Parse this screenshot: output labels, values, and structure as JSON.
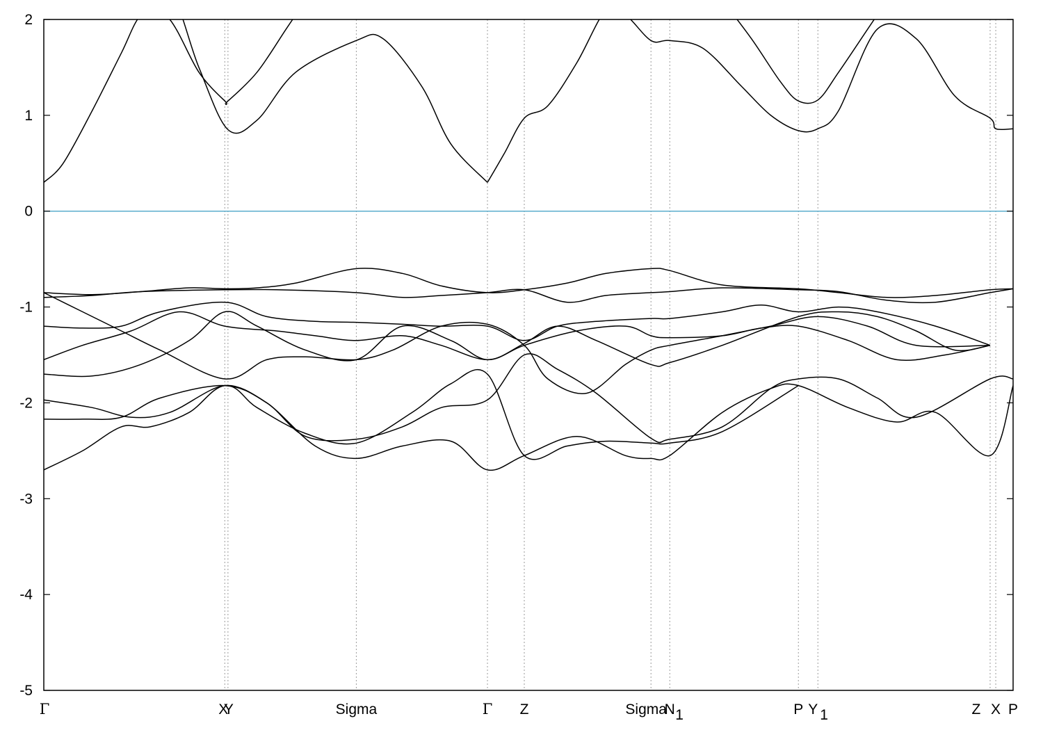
{
  "chart_data": {
    "type": "line",
    "title": "",
    "xlabel": "",
    "ylabel": "",
    "ylim": [
      -5,
      2
    ],
    "xlim": [
      0,
      1
    ],
    "y_ticks": [
      2,
      1,
      0,
      -1,
      -2,
      -3,
      -4,
      -5
    ],
    "y_tick_labels": [
      "2",
      "1",
      "0",
      "-1",
      "-2",
      "-3",
      "-4",
      "-5"
    ],
    "fermi_level": 0,
    "fermi_color": "#5aaccc",
    "line_color": "#000000",
    "grid": false,
    "kpoints": [
      {
        "name": "Γ",
        "x": 0.0
      },
      {
        "name": "X",
        "x": 0.1867
      },
      {
        "name": "Y",
        "x": 0.19
      },
      {
        "name": "Sigma",
        "x": 0.3224
      },
      {
        "name": "Γ",
        "x": 0.4577
      },
      {
        "name": "Z",
        "x": 0.4957
      },
      {
        "name": "Sigma",
        "x": 0.6264
      },
      {
        "name": "N",
        "x": 0.6458
      },
      {
        "name": "P",
        "x": 0.7785
      },
      {
        "name": "Y",
        "x": 0.7986
      },
      {
        "name": "Z",
        "x": 0.9763
      },
      {
        "name": "X",
        "x": 0.9821
      },
      {
        "name": "P",
        "x": 1.0
      }
    ],
    "kpoint_label_text": {
      "gamma1": "Γ",
      "xy": "X",
      "xy2": "Y",
      "sigma1": "Sigma",
      "gamma2": "Γ",
      "z1": "Z",
      "sigma2": "Sigma",
      "n1": "N",
      "n1_sub": "1",
      "p1": "P",
      "y1": "Y",
      "y1_sub": "1",
      "z2": "Z",
      "x2": "X",
      "p2": "P"
    },
    "series": [
      {
        "x": [
          0.0,
          0.02,
          0.05,
          0.08,
          0.1,
          0.13,
          0.16,
          0.19,
          0.22,
          0.26,
          0.3224,
          0.35,
          0.39,
          0.42,
          0.4577
        ],
        "y": [
          0.3,
          0.5,
          1.05,
          1.65,
          2.05,
          2.3,
          1.5,
          0.85,
          0.95,
          1.45,
          1.78,
          1.8,
          1.3,
          0.7,
          0.3
        ]
      },
      {
        "x": [
          0.4577,
          0.475,
          0.4957,
          0.52,
          0.55,
          0.58,
          0.6,
          0.6264,
          0.6458,
          0.68,
          0.72,
          0.75,
          0.7785,
          0.7986,
          0.82,
          0.86,
          0.9,
          0.94,
          0.9763,
          0.9821,
          1.0
        ],
        "y": [
          0.3,
          0.6,
          0.97,
          1.1,
          1.55,
          2.1,
          2.05,
          1.78,
          1.78,
          1.7,
          1.3,
          1.0,
          0.84,
          0.86,
          1.05,
          1.9,
          1.8,
          1.2,
          0.97,
          0.86,
          0.86
        ]
      },
      {
        "x": [
          0.1,
          0.13,
          0.16,
          0.1867,
          0.19,
          0.22,
          0.25,
          0.27
        ],
        "y": [
          2.2,
          2.0,
          1.45,
          1.15,
          1.15,
          1.45,
          1.9,
          2.2
        ]
      },
      {
        "x": [
          0.7,
          0.73,
          0.76,
          0.7785,
          0.7986,
          0.82,
          0.85,
          0.87
        ],
        "y": [
          2.2,
          1.8,
          1.35,
          1.15,
          1.16,
          1.45,
          1.9,
          2.2
        ]
      },
      {
        "x": [
          0.0,
          0.05,
          0.1,
          0.15,
          0.1867,
          0.22,
          0.26,
          0.3224,
          0.37,
          0.41,
          0.4577,
          0.4957,
          0.54,
          0.58,
          0.6264,
          0.6458,
          0.7,
          0.7785,
          0.82,
          0.87,
          0.92,
          0.9763,
          1.0
        ],
        "y": [
          -0.85,
          -0.87,
          -0.84,
          -0.8,
          -0.81,
          -0.8,
          -0.75,
          -0.6,
          -0.65,
          -0.78,
          -0.85,
          -0.82,
          -0.75,
          -0.65,
          -0.6,
          -0.62,
          -0.77,
          -0.81,
          -0.85,
          -0.9,
          -0.88,
          -0.82,
          -0.81
        ]
      },
      {
        "x": [
          0.0,
          0.05,
          0.1,
          0.1867,
          0.24,
          0.3224,
          0.37,
          0.41,
          0.4577,
          0.4957,
          0.54,
          0.58,
          0.6264,
          0.6458,
          0.7,
          0.7785,
          0.82,
          0.87,
          0.92,
          0.9763,
          1.0
        ],
        "y": [
          -0.9,
          -0.88,
          -0.84,
          -0.82,
          -0.82,
          -0.85,
          -0.9,
          -0.88,
          -0.85,
          -0.82,
          -0.95,
          -0.88,
          -0.85,
          -0.84,
          -0.8,
          -0.82,
          -0.84,
          -0.93,
          -0.95,
          -0.85,
          -0.81
        ]
      },
      {
        "x": [
          0.0,
          0.04,
          0.08,
          0.12,
          0.1867,
          0.23,
          0.28,
          0.3224,
          0.37,
          0.41,
          0.4577,
          0.4957,
          0.53,
          0.57,
          0.6264,
          0.6458,
          0.7,
          0.74,
          0.7785,
          0.82,
          0.86,
          0.92,
          0.9763
        ],
        "y": [
          -1.2,
          -1.22,
          -1.2,
          -1.05,
          -0.95,
          -1.1,
          -1.15,
          -1.16,
          -1.18,
          -1.2,
          -1.2,
          -1.35,
          -1.2,
          -1.15,
          -1.12,
          -1.12,
          -1.05,
          -0.98,
          -1.05,
          -1.0,
          -1.05,
          -1.2,
          -1.4
        ]
      },
      {
        "x": [
          0.0,
          0.04,
          0.09,
          0.14,
          0.1867,
          0.24,
          0.28,
          0.3224,
          0.37,
          0.41,
          0.4577,
          0.4957,
          0.55,
          0.6,
          0.6264,
          0.6458,
          0.7,
          0.74,
          0.7785,
          0.83,
          0.88,
          0.93,
          0.9763
        ],
        "y": [
          -1.55,
          -1.4,
          -1.25,
          -1.05,
          -1.2,
          -1.25,
          -1.3,
          -1.35,
          -1.3,
          -1.4,
          -1.55,
          -1.4,
          -1.25,
          -1.2,
          -1.3,
          -1.32,
          -1.3,
          -1.22,
          -1.2,
          -1.35,
          -1.55,
          -1.5,
          -1.4
        ]
      },
      {
        "x": [
          0.0,
          0.04,
          0.08,
          0.12,
          0.1867,
          0.23,
          0.27,
          0.3224,
          0.36,
          0.41,
          0.4577,
          0.4957,
          0.52,
          0.56,
          0.6,
          0.6264,
          0.6458,
          0.7,
          0.75,
          0.7986,
          0.85,
          0.9,
          0.9763
        ],
        "y": [
          -0.85,
          -1.05,
          -1.25,
          -1.45,
          -1.75,
          -1.55,
          -1.52,
          -1.55,
          -1.45,
          -1.2,
          -1.18,
          -1.4,
          -1.75,
          -1.9,
          -1.6,
          -1.45,
          -1.4,
          -1.3,
          -1.2,
          -1.1,
          -1.2,
          -1.4,
          -1.4
        ]
      },
      {
        "x": [
          0.0,
          0.05,
          0.1,
          0.15,
          0.1867,
          0.22,
          0.27,
          0.3224,
          0.37,
          0.42,
          0.4577,
          0.4957,
          0.53,
          0.57,
          0.6264,
          0.6458,
          0.7,
          0.7785,
          0.82,
          0.86,
          0.9,
          0.94,
          0.9763
        ],
        "y": [
          -1.7,
          -1.72,
          -1.6,
          -1.35,
          -1.05,
          -1.2,
          -1.45,
          -1.55,
          -1.2,
          -1.35,
          -1.55,
          -1.38,
          -1.2,
          -1.35,
          -1.6,
          -1.58,
          -1.4,
          -1.1,
          -1.05,
          -1.1,
          -1.25,
          -1.45,
          -1.4
        ]
      },
      {
        "x": [
          0.0,
          0.04,
          0.08,
          0.11,
          0.15,
          0.1867,
          0.23,
          0.28,
          0.3224,
          0.37,
          0.42,
          0.4577,
          0.4957,
          0.55,
          0.6,
          0.6264,
          0.6458,
          0.7,
          0.75,
          0.7785,
          0.83,
          0.88,
          0.92,
          0.9763,
          1.0
        ],
        "y": [
          -2.7,
          -2.5,
          -2.25,
          -2.25,
          -2.1,
          -1.82,
          -2.0,
          -2.45,
          -2.58,
          -2.45,
          -2.4,
          -2.7,
          -2.55,
          -2.35,
          -2.55,
          -2.58,
          -2.55,
          -2.1,
          -1.85,
          -1.82,
          -2.05,
          -2.2,
          -2.1,
          -2.55,
          -1.82
        ]
      },
      {
        "x": [
          0.0,
          0.04,
          0.08,
          0.12,
          0.1867,
          0.23,
          0.27,
          0.3224,
          0.37,
          0.41,
          0.4577,
          0.4957,
          0.53,
          0.57,
          0.6264,
          0.6458,
          0.7,
          0.75,
          0.7785,
          0.82,
          0.86,
          0.9,
          0.9763,
          1.0
        ],
        "y": [
          -2.17,
          -2.17,
          -2.15,
          -1.95,
          -1.82,
          -2.0,
          -2.35,
          -2.38,
          -2.25,
          -2.05,
          -1.97,
          -1.5,
          -1.65,
          -1.9,
          -2.37,
          -2.38,
          -2.25,
          -1.85,
          -1.75,
          -1.75,
          -1.95,
          -2.15,
          -1.75,
          -1.75
        ]
      },
      {
        "x": [
          0.0,
          0.05,
          0.09,
          0.13,
          0.1867,
          0.22,
          0.27,
          0.3224,
          0.38,
          0.42,
          0.4577,
          0.4957,
          0.54,
          0.58,
          0.6264,
          0.6458,
          0.7,
          0.7785
        ],
        "y": [
          -1.97,
          -2.05,
          -2.15,
          -2.1,
          -1.82,
          -2.05,
          -2.32,
          -2.42,
          -2.1,
          -1.8,
          -1.7,
          -2.55,
          -2.45,
          -2.4,
          -2.42,
          -2.42,
          -2.3,
          -1.82
        ]
      }
    ]
  }
}
